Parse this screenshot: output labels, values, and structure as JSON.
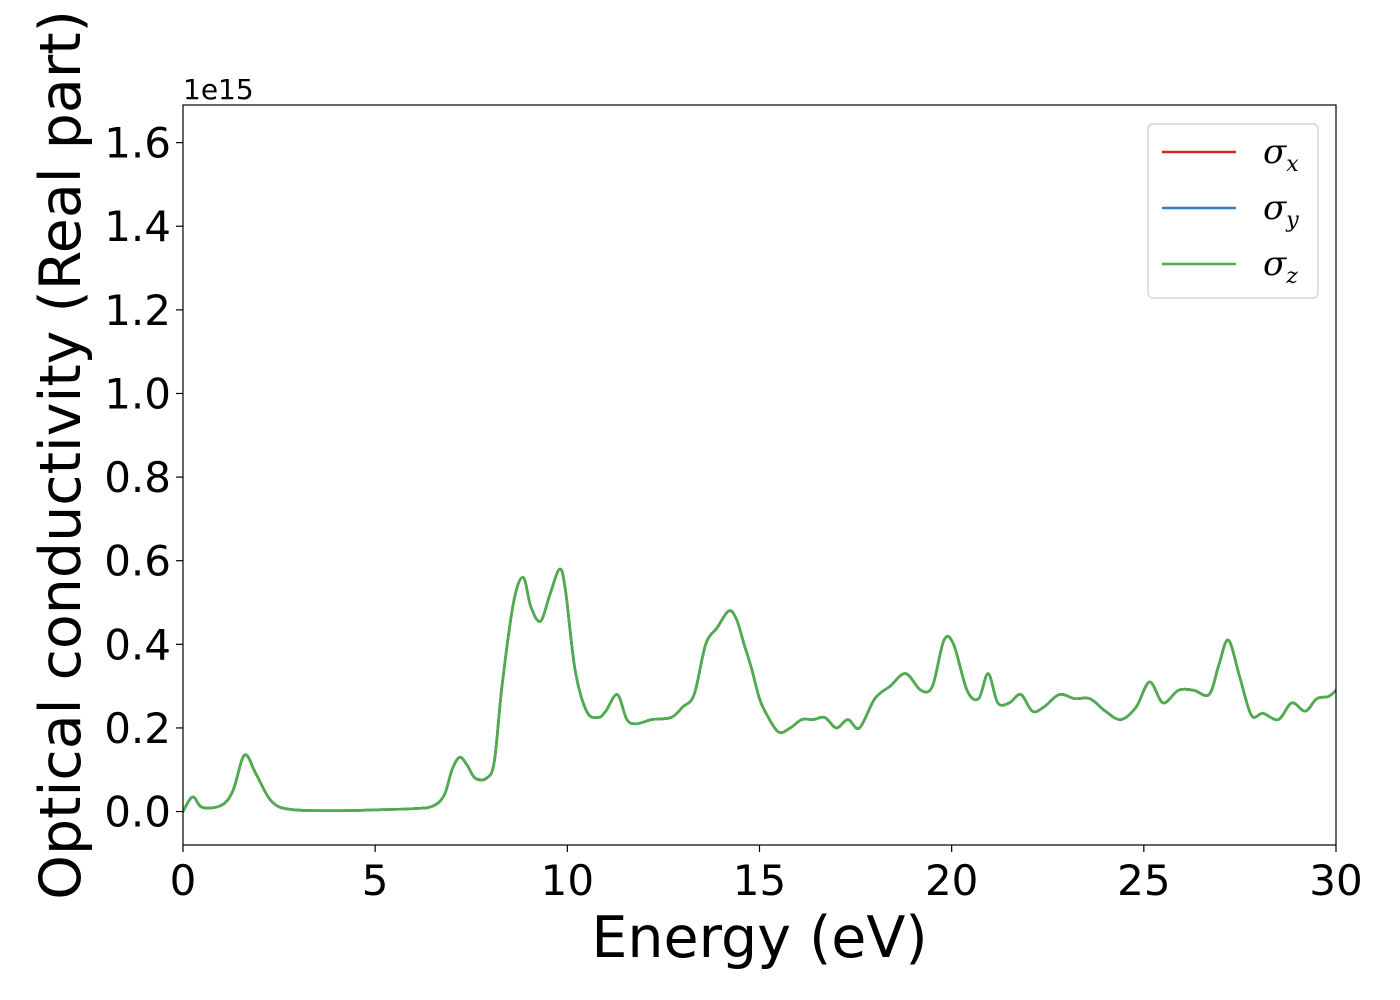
{
  "chart_data": {
    "type": "line",
    "title": "",
    "xlabel": "Energy (eV)",
    "ylabel": "Optical conductivity (Real part)",
    "y_offset_label": "1e15",
    "xlim": [
      0,
      30
    ],
    "ylim": [
      -0.08,
      1.69
    ],
    "xticks": [
      0,
      5,
      10,
      15,
      20,
      25,
      30
    ],
    "xtick_labels": [
      "0",
      "5",
      "10",
      "15",
      "20",
      "25",
      "30"
    ],
    "yticks": [
      0.0,
      0.2,
      0.4,
      0.6,
      0.8,
      1.0,
      1.2,
      1.4,
      1.6
    ],
    "ytick_labels": [
      "0.0",
      "0.2",
      "0.4",
      "0.6",
      "0.8",
      "1.0",
      "1.2",
      "1.4",
      "1.6"
    ],
    "grid": false,
    "legend_position": "top-right",
    "x": [
      0,
      0.25,
      0.5,
      1.0,
      1.3,
      1.6,
      1.9,
      2.3,
      2.8,
      4.0,
      5.0,
      6.0,
      6.5,
      6.8,
      7.0,
      7.2,
      7.4,
      7.6,
      7.9,
      8.1,
      8.3,
      8.6,
      8.85,
      9.05,
      9.3,
      9.55,
      9.8,
      9.95,
      10.2,
      10.5,
      10.8,
      11.0,
      11.3,
      11.55,
      11.8,
      12.2,
      12.7,
      13.0,
      13.3,
      13.6,
      13.9,
      14.2,
      14.4,
      14.6,
      14.8,
      15.0,
      15.2,
      15.5,
      15.8,
      16.1,
      16.4,
      16.7,
      17.0,
      17.3,
      17.6,
      18.0,
      18.4,
      18.8,
      19.2,
      19.5,
      19.8,
      20.05,
      20.4,
      20.7,
      20.95,
      21.2,
      21.5,
      21.8,
      22.1,
      22.4,
      22.8,
      23.2,
      23.6,
      24.0,
      24.4,
      24.8,
      25.15,
      25.5,
      25.9,
      26.3,
      26.7,
      26.95,
      27.2,
      27.5,
      27.8,
      28.1,
      28.5,
      28.85,
      29.2,
      29.5,
      29.8,
      30.0
    ],
    "series": [
      {
        "name": "σx",
        "color": "#d62728",
        "values": [
          0.0,
          0.035,
          0.01,
          0.015,
          0.05,
          0.135,
          0.09,
          0.025,
          0.005,
          0.002,
          0.004,
          0.007,
          0.013,
          0.04,
          0.1,
          0.13,
          0.11,
          0.08,
          0.08,
          0.12,
          0.3,
          0.5,
          0.56,
          0.49,
          0.455,
          0.52,
          0.58,
          0.53,
          0.34,
          0.24,
          0.225,
          0.24,
          0.28,
          0.22,
          0.21,
          0.22,
          0.225,
          0.25,
          0.28,
          0.4,
          0.44,
          0.48,
          0.46,
          0.4,
          0.34,
          0.27,
          0.23,
          0.19,
          0.2,
          0.22,
          0.22,
          0.225,
          0.2,
          0.22,
          0.2,
          0.27,
          0.3,
          0.33,
          0.29,
          0.3,
          0.41,
          0.4,
          0.29,
          0.27,
          0.33,
          0.26,
          0.26,
          0.28,
          0.24,
          0.25,
          0.28,
          0.27,
          0.27,
          0.24,
          0.22,
          0.25,
          0.31,
          0.26,
          0.29,
          0.29,
          0.28,
          0.35,
          0.41,
          0.32,
          0.23,
          0.235,
          0.22,
          0.26,
          0.24,
          0.27,
          0.275,
          0.29
        ]
      },
      {
        "name": "σy",
        "color": "#377eb8",
        "values": [
          0.0,
          0.035,
          0.01,
          0.015,
          0.05,
          0.135,
          0.09,
          0.025,
          0.005,
          0.002,
          0.004,
          0.007,
          0.013,
          0.04,
          0.1,
          0.13,
          0.11,
          0.08,
          0.08,
          0.12,
          0.3,
          0.5,
          0.56,
          0.49,
          0.455,
          0.52,
          0.58,
          0.53,
          0.34,
          0.24,
          0.225,
          0.24,
          0.28,
          0.22,
          0.21,
          0.22,
          0.225,
          0.25,
          0.28,
          0.4,
          0.44,
          0.48,
          0.46,
          0.4,
          0.34,
          0.27,
          0.23,
          0.19,
          0.2,
          0.22,
          0.22,
          0.225,
          0.2,
          0.22,
          0.2,
          0.27,
          0.3,
          0.33,
          0.29,
          0.3,
          0.41,
          0.4,
          0.29,
          0.27,
          0.33,
          0.26,
          0.26,
          0.28,
          0.24,
          0.25,
          0.28,
          0.27,
          0.27,
          0.24,
          0.22,
          0.25,
          0.31,
          0.26,
          0.29,
          0.29,
          0.28,
          0.35,
          0.41,
          0.32,
          0.23,
          0.235,
          0.22,
          0.26,
          0.24,
          0.27,
          0.275,
          0.29
        ]
      },
      {
        "name": "σz",
        "color": "#4daf4a",
        "values": [
          0.0,
          0.035,
          0.01,
          0.015,
          0.05,
          0.135,
          0.09,
          0.025,
          0.005,
          0.002,
          0.004,
          0.007,
          0.013,
          0.04,
          0.1,
          0.13,
          0.11,
          0.08,
          0.08,
          0.12,
          0.3,
          0.5,
          0.56,
          0.49,
          0.455,
          0.52,
          0.58,
          0.53,
          0.34,
          0.24,
          0.225,
          0.24,
          0.28,
          0.22,
          0.21,
          0.22,
          0.225,
          0.25,
          0.28,
          0.4,
          0.44,
          0.48,
          0.46,
          0.4,
          0.34,
          0.27,
          0.23,
          0.19,
          0.2,
          0.22,
          0.22,
          0.225,
          0.2,
          0.22,
          0.2,
          0.27,
          0.3,
          0.33,
          0.29,
          0.3,
          0.41,
          0.4,
          0.29,
          0.27,
          0.33,
          0.26,
          0.26,
          0.28,
          0.24,
          0.25,
          0.28,
          0.27,
          0.27,
          0.24,
          0.22,
          0.25,
          0.31,
          0.26,
          0.29,
          0.29,
          0.28,
          0.35,
          0.41,
          0.32,
          0.23,
          0.235,
          0.22,
          0.26,
          0.24,
          0.27,
          0.275,
          0.29
        ]
      }
    ],
    "legend": [
      {
        "symbol": "σ",
        "sub": "x",
        "color": "#d62728"
      },
      {
        "symbol": "σ",
        "sub": "y",
        "color": "#377eb8"
      },
      {
        "symbol": "σ",
        "sub": "z",
        "color": "#4daf4a"
      }
    ]
  }
}
